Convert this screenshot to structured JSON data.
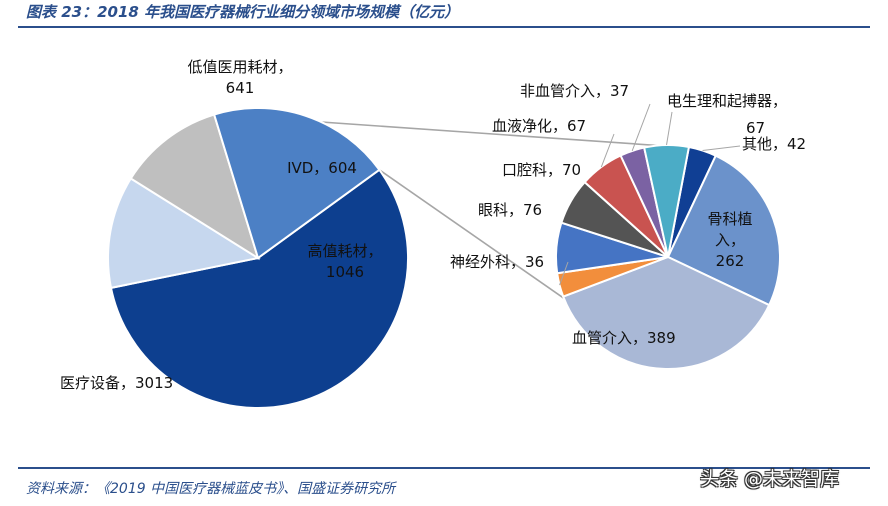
{
  "figure": {
    "title": "图表 23：2018 年我国医疗器械行业细分领域市场规模（亿元）",
    "source": "资料来源：《2019 中国医疗器械蓝皮书》、国盛证券研究所",
    "watermark": "头条 @未来智库"
  },
  "chart_data": {
    "type": "pie",
    "title": "2018 年我国医疗器械行业细分领域市场规模（亿元）",
    "unit": "亿元",
    "main_pie": {
      "slices": [
        {
          "label": "医疗设备",
          "value": 3013,
          "color": "#0d3f8f"
        },
        {
          "label": "低值医用耗材",
          "value": 641,
          "color": "#c6d7ee"
        },
        {
          "label": "IVD",
          "value": 604,
          "color": "#bfbfbf"
        },
        {
          "label": "高值耗材",
          "value": 1046,
          "color": "#4c80c5"
        }
      ]
    },
    "secondary_pie": {
      "parent": "高值耗材",
      "slices": [
        {
          "label": "骨科植入",
          "value": 262,
          "color": "#6b92cb"
        },
        {
          "label": "血管介入",
          "value": 389,
          "color": "#a9b8d6"
        },
        {
          "label": "神经外科",
          "value": 36,
          "color": "#f28e3c"
        },
        {
          "label": "眼科",
          "value": 76,
          "color": "#4574c4"
        },
        {
          "label": "口腔科",
          "value": 70,
          "color": "#545454"
        },
        {
          "label": "血液净化",
          "value": 67,
          "color": "#c95350"
        },
        {
          "label": "非血管介入",
          "value": 37,
          "color": "#7b62a3"
        },
        {
          "label": "电生理和起搏器",
          "value": 67,
          "color": "#4bacc6"
        },
        {
          "label": "其他",
          "value": 42,
          "color": "#103f94"
        }
      ]
    }
  }
}
